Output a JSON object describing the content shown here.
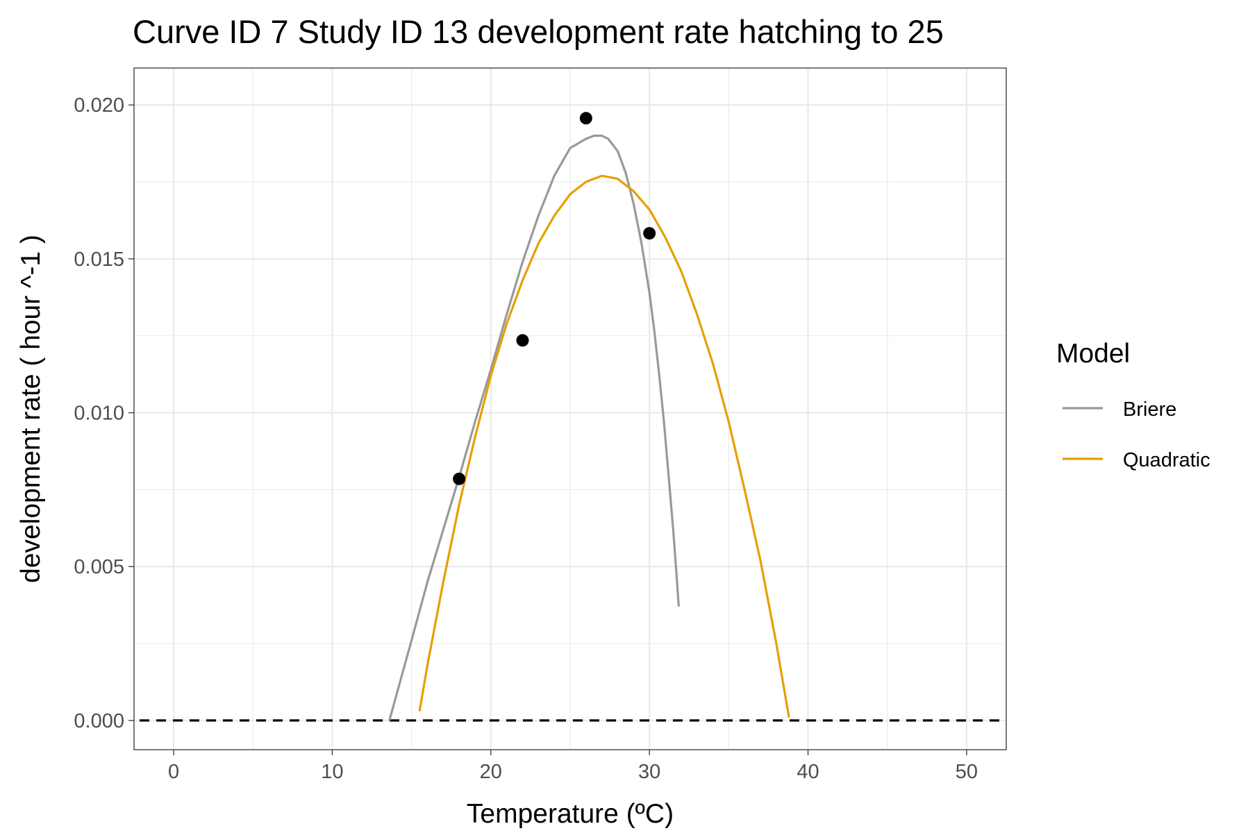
{
  "chart_data": {
    "type": "line",
    "title": "Curve ID 7 Study ID 13 development rate hatching to 25",
    "xlabel": "Temperature (ºC)",
    "ylabel": "development rate ( hour ^-1 )",
    "xlim": [
      -2.5,
      52.5
    ],
    "ylim": [
      -0.00095,
      0.0212
    ],
    "x_ticks": [
      0,
      10,
      20,
      30,
      40,
      50
    ],
    "y_ticks": [
      0.0,
      0.005,
      0.01,
      0.015,
      0.02
    ],
    "x_tick_labels": [
      "0",
      "10",
      "20",
      "30",
      "40",
      "50"
    ],
    "y_tick_labels": [
      "0.000",
      "0.005",
      "0.010",
      "0.015",
      "0.020"
    ],
    "grid": true,
    "reference_line": {
      "y": 0,
      "style": "dashed",
      "color": "#000000"
    },
    "points": {
      "x": [
        18,
        22,
        26,
        30
      ],
      "y": [
        0.00785,
        0.01235,
        0.01957,
        0.01583
      ],
      "color": "#000000"
    },
    "legend": {
      "title": "Model",
      "position": "right"
    },
    "series": [
      {
        "name": "Briere",
        "color": "#999999",
        "x": [
          13.6,
          15,
          16,
          17,
          18,
          19,
          20,
          21,
          22,
          23,
          24,
          25,
          26,
          26.5,
          27,
          27.4,
          28,
          28.5,
          29,
          29.5,
          30,
          30.3,
          30.6,
          30.9,
          31.2,
          31.5,
          31.7,
          31.85
        ],
        "y": [
          0.0,
          0.0026,
          0.0045,
          0.0062,
          0.0079,
          0.0097,
          0.0114,
          0.0132,
          0.0149,
          0.0164,
          0.0177,
          0.0186,
          0.0189,
          0.019,
          0.019,
          0.0189,
          0.0185,
          0.0178,
          0.0168,
          0.0155,
          0.0139,
          0.0127,
          0.0113,
          0.0098,
          0.008,
          0.0062,
          0.0048,
          0.0037
        ]
      },
      {
        "name": "Quadratic",
        "color": "#E69F00",
        "x": [
          15.5,
          16,
          17,
          18,
          19,
          20,
          21,
          22,
          23,
          24,
          25,
          26,
          27,
          28,
          29,
          30,
          31,
          32,
          33,
          34,
          35,
          36,
          37,
          38,
          38.8
        ],
        "y": [
          0.0003,
          0.0018,
          0.0045,
          0.007,
          0.0092,
          0.0112,
          0.0129,
          0.0143,
          0.0155,
          0.0164,
          0.0171,
          0.0175,
          0.0177,
          0.0176,
          0.0172,
          0.0166,
          0.0157,
          0.0146,
          0.0132,
          0.0116,
          0.0097,
          0.0075,
          0.0052,
          0.0025,
          0.0001
        ]
      }
    ]
  }
}
